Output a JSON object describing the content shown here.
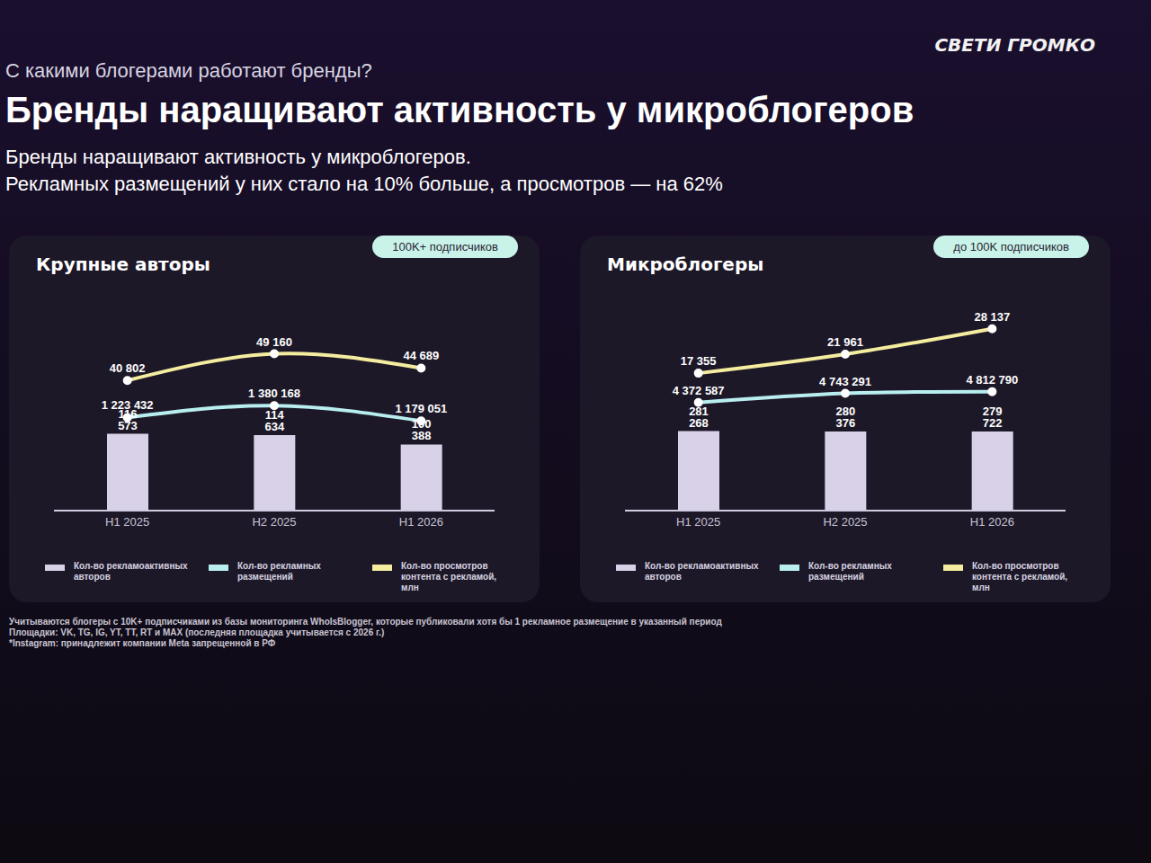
{
  "slide": {
    "brand": "СВЕТИ ГРОМКО",
    "kicker": "С какими блогерами работают бренды?",
    "title": "Бренды наращивают активность у микроблогеров",
    "subtitle": [
      "Бренды наращивают активность у микроблогеров.",
      "Рекламных размещений у них стало на 10% больше, а просмотров — на 62%"
    ],
    "footnotes": [
      "Учитываются блогеры с 10K+ подписчиками из базы мониторинга WhoIsBlogger, которые публиковали хотя бы 1 рекламное размещение в указанный период",
      "Площадки: VK, TG, IG, YT, TT, RT и MAX (последняя площадка учитывается с 2026 г.)",
      "*Instagram: принадлежит компании Meta запрещенной в РФ"
    ]
  },
  "chart_data": [
    {
      "type": "bar",
      "title": "Крупные авторы",
      "subtitle": "100K+ подписчиков",
      "categories": [
        "H1 2025",
        "H2 2025",
        "H1 2026"
      ],
      "data_labels": true,
      "tick_labels": "x",
      "ylim": [
        0,
        300000
      ],
      "y2lim": [
        0,
        2600000
      ],
      "y3lim": [
        0,
        62000
      ],
      "series": [
        {
          "name": "Кол-во рекламоактивных авторов",
          "type": "bar",
          "color": "#d9d1e8",
          "values": [
            116573,
            114634,
            100388
          ],
          "value_labels": [
            "116 573",
            "114 634",
            "100 388"
          ]
        },
        {
          "name": "Кол-во рекламных размещений",
          "type": "line",
          "axis": "y2",
          "color": "#b8eef0",
          "values": [
            1223432,
            1380168,
            1179051
          ],
          "value_labels": [
            "1 223 432",
            "1 380 168",
            "1 179 051"
          ]
        },
        {
          "name": "Кол-во просмотров контента с рекламой, млн",
          "type": "line",
          "axis": "y3",
          "color": "#f4ec9e",
          "values": [
            40802,
            49160,
            44689
          ],
          "value_labels": [
            "40 802",
            "49 160",
            "44 689"
          ]
        }
      ]
    },
    {
      "type": "bar",
      "title": "Микроблогеры",
      "subtitle": "до 100K подписчиков",
      "categories": [
        "H1 2025",
        "H2 2025",
        "H1 2026"
      ],
      "data_labels": true,
      "tick_labels": "x",
      "ylim": [
        0,
        700000
      ],
      "y2lim": [
        0,
        8000000
      ],
      "y3lim": [
        -16000,
        32000
      ],
      "series": [
        {
          "name": "Кол-во рекламоактивных авторов",
          "type": "bar",
          "color": "#d9d1e8",
          "values": [
            281268,
            280376,
            279722
          ],
          "value_labels": [
            "281 268",
            "280 376",
            "279 722"
          ]
        },
        {
          "name": "Кол-во рекламных размещений",
          "type": "line",
          "axis": "y2",
          "color": "#b8eef0",
          "values": [
            4372587,
            4743291,
            4812790
          ],
          "value_labels": [
            "4 372 587",
            "4 743 291",
            "4 812 790"
          ]
        },
        {
          "name": "Кол-во просмотров контента с рекламой, млн",
          "type": "line",
          "axis": "y3",
          "color": "#f4ec9e",
          "values": [
            17355,
            21961,
            28137
          ],
          "value_labels": [
            "17 355",
            "21 961",
            "28 137"
          ]
        }
      ]
    }
  ]
}
